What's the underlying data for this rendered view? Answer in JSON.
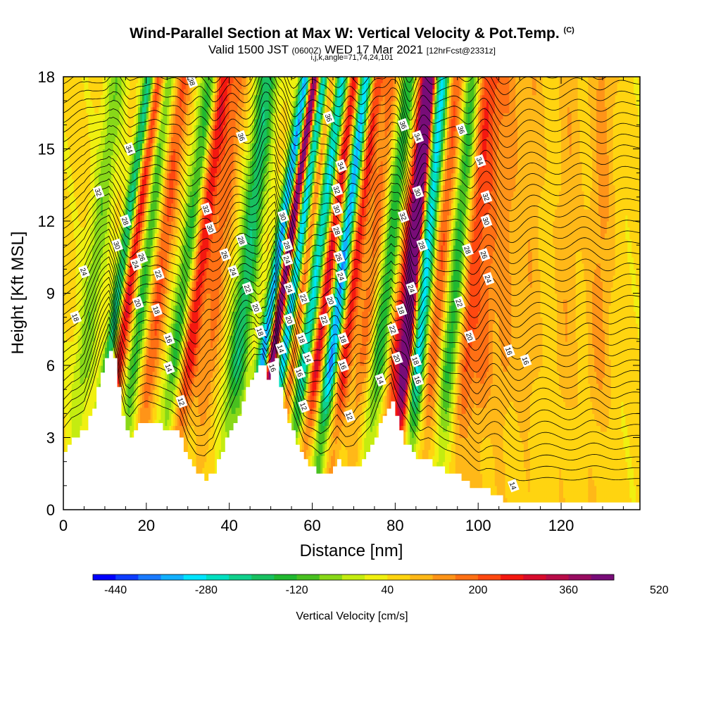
{
  "title": {
    "main": "Wind-Parallel Section at Max W: Vertical Velocity & Pot.Temp.",
    "copyright": "(C)",
    "valid_prefix": "Valid 1500 JST",
    "valid_utc": "(0600Z)",
    "valid_date": "WED 17 Mar 2021",
    "forecast": "[12hrFcst@2331z]",
    "indices": "i,j,k,angle=71,74,24,101"
  },
  "chart_data": {
    "type": "heatmap",
    "xlabel": "Distance [nm]",
    "ylabel": "Height [Kft MSL]",
    "xlim": [
      0,
      139
    ],
    "ylim": [
      0,
      18
    ],
    "x_ticks": [
      0,
      20,
      40,
      60,
      80,
      100,
      120
    ],
    "y_ticks": [
      0,
      3,
      6,
      9,
      12,
      15,
      18
    ],
    "colorbar": {
      "label": "Vertical Velocity [cm/s]",
      "tick_labels": [
        -440,
        -280,
        -120,
        40,
        200,
        360,
        520
      ],
      "min": -480,
      "step": 40,
      "colors": [
        "#0000ff",
        "#0d3cff",
        "#1a7aff",
        "#12b0ff",
        "#00e4ff",
        "#00e0c0",
        "#10d08c",
        "#18c060",
        "#20b830",
        "#48c020",
        "#88d818",
        "#c4ec10",
        "#f0f010",
        "#ffd410",
        "#ffb818",
        "#ff9418",
        "#ff7014",
        "#ff4810",
        "#f41810",
        "#d80c2c",
        "#b80c48",
        "#980c60",
        "#780c78"
      ]
    },
    "terrain_height_kft": [
      [
        0,
        2.5
      ],
      [
        2,
        3.0
      ],
      [
        5,
        3.3
      ],
      [
        7,
        4.3
      ],
      [
        9,
        5.6
      ],
      [
        11,
        6.7
      ],
      [
        12,
        6.3
      ],
      [
        13,
        5.2
      ],
      [
        14,
        4.0
      ],
      [
        15,
        3.2
      ],
      [
        16,
        3.0
      ],
      [
        18,
        3.5
      ],
      [
        20,
        3.7
      ],
      [
        22,
        3.6
      ],
      [
        24,
        3.4
      ],
      [
        26,
        3.3
      ],
      [
        28,
        3.0
      ],
      [
        30,
        2.0
      ],
      [
        32,
        1.5
      ],
      [
        34,
        1.3
      ],
      [
        36,
        1.5
      ],
      [
        38,
        2.5
      ],
      [
        40,
        3.3
      ],
      [
        42,
        4.0
      ],
      [
        44,
        5.0
      ],
      [
        46,
        5.8
      ],
      [
        48,
        6.0
      ],
      [
        49,
        5.5
      ],
      [
        50,
        5.6
      ],
      [
        51,
        6.2
      ],
      [
        52,
        5.0
      ],
      [
        54,
        3.6
      ],
      [
        56,
        2.8
      ],
      [
        58,
        2.0
      ],
      [
        60,
        1.8
      ],
      [
        62,
        1.4
      ],
      [
        64,
        1.5
      ],
      [
        66,
        2.0
      ],
      [
        68,
        1.7
      ],
      [
        70,
        1.7
      ],
      [
        72,
        2.1
      ],
      [
        74,
        2.6
      ],
      [
        76,
        3.6
      ],
      [
        78,
        4.3
      ],
      [
        79,
        4.5
      ],
      [
        80,
        3.8
      ],
      [
        82,
        2.8
      ],
      [
        84,
        2.3
      ],
      [
        86,
        2.0
      ],
      [
        88,
        2.0
      ],
      [
        90,
        1.8
      ],
      [
        92,
        1.6
      ],
      [
        94,
        1.5
      ],
      [
        96,
        1.3
      ],
      [
        98,
        1.0
      ],
      [
        100,
        0.8
      ],
      [
        102,
        0.8
      ],
      [
        104,
        0.6
      ],
      [
        106,
        0.4
      ],
      [
        110,
        0.3
      ],
      [
        120,
        0.3
      ],
      [
        130,
        0.3
      ],
      [
        139,
        0.3
      ]
    ],
    "vertical_velocity_bands": [
      {
        "x": 5,
        "w": 2.5,
        "v": -120,
        "tilt": 1.2
      },
      {
        "x": 11,
        "w": 1.5,
        "v": -360,
        "tilt": 1.5
      },
      {
        "x": 13,
        "w": 2.2,
        "v": 280,
        "tilt": 1.5
      },
      {
        "x": 17,
        "w": 2.0,
        "v": -200,
        "tilt": 1.2
      },
      {
        "x": 21,
        "w": 2.0,
        "v": 160,
        "tilt": 1.2
      },
      {
        "x": 27,
        "w": 2.2,
        "v": -200,
        "tilt": 1.3
      },
      {
        "x": 30,
        "w": 2.2,
        "v": 240,
        "tilt": 1.3
      },
      {
        "x": 35,
        "w": 2.2,
        "v": 120,
        "tilt": 1.1
      },
      {
        "x": 42,
        "w": 2.5,
        "v": -240,
        "tilt": 1.1
      },
      {
        "x": 48,
        "w": 1.5,
        "v": -440,
        "tilt": 1.6
      },
      {
        "x": 50,
        "w": 1.3,
        "v": 480,
        "tilt": 1.6
      },
      {
        "x": 53,
        "w": 1.4,
        "v": -440,
        "tilt": 1.5
      },
      {
        "x": 55,
        "w": 1.8,
        "v": 200,
        "tilt": 1.4
      },
      {
        "x": 58,
        "w": 1.8,
        "v": -360,
        "tilt": 1.4
      },
      {
        "x": 61,
        "w": 1.8,
        "v": 280,
        "tilt": 1.4
      },
      {
        "x": 64.5,
        "w": 1.8,
        "v": -440,
        "tilt": 1.3
      },
      {
        "x": 67.5,
        "w": 1.8,
        "v": 240,
        "tilt": 1.2
      },
      {
        "x": 72,
        "w": 2.0,
        "v": 120,
        "tilt": 1.1
      },
      {
        "x": 76,
        "w": 2.0,
        "v": -200,
        "tilt": 1.1
      },
      {
        "x": 80,
        "w": 1.8,
        "v": 200,
        "tilt": 1.1
      },
      {
        "x": 82.5,
        "w": 1.5,
        "v": 480,
        "tilt": 0.9
      },
      {
        "x": 85.5,
        "w": 1.8,
        "v": -360,
        "tilt": 0.9
      },
      {
        "x": 89,
        "w": 2.0,
        "v": 160,
        "tilt": 0.9
      },
      {
        "x": 93,
        "w": 2.2,
        "v": -200,
        "tilt": 0.9
      },
      {
        "x": 97,
        "w": 2.2,
        "v": 160,
        "tilt": 0.7
      },
      {
        "x": 101,
        "w": 2.5,
        "v": 120,
        "tilt": 0.5
      },
      {
        "x": 106,
        "w": 2.5,
        "v": 80,
        "tilt": 0.3
      },
      {
        "x": 112,
        "w": 3.0,
        "v": 60,
        "tilt": 0.2
      },
      {
        "x": 121,
        "w": 3.0,
        "v": 60,
        "tilt": 0.2
      },
      {
        "x": 129,
        "w": 3.0,
        "v": 80,
        "tilt": 0.2
      }
    ],
    "potential_temperature_labels": [
      {
        "x": 31,
        "y": 17.8,
        "t": "38"
      },
      {
        "x": 43,
        "y": 15.5,
        "t": "36"
      },
      {
        "x": 64,
        "y": 16.3,
        "t": "36"
      },
      {
        "x": 82,
        "y": 16.0,
        "t": "36"
      },
      {
        "x": 96,
        "y": 15.8,
        "t": "36"
      },
      {
        "x": 16,
        "y": 15.0,
        "t": "34"
      },
      {
        "x": 67,
        "y": 14.3,
        "t": "34"
      },
      {
        "x": 85.5,
        "y": 15.5,
        "t": "34"
      },
      {
        "x": 100.5,
        "y": 14.5,
        "t": "34"
      },
      {
        "x": 8.5,
        "y": 13.2,
        "t": "32"
      },
      {
        "x": 34.5,
        "y": 12.5,
        "t": "32"
      },
      {
        "x": 66,
        "y": 13.3,
        "t": "32"
      },
      {
        "x": 82,
        "y": 12.2,
        "t": "32"
      },
      {
        "x": 102,
        "y": 13.0,
        "t": "32"
      },
      {
        "x": 13,
        "y": 11.0,
        "t": "30"
      },
      {
        "x": 35.5,
        "y": 11.7,
        "t": "30"
      },
      {
        "x": 53,
        "y": 12.2,
        "t": "30"
      },
      {
        "x": 66,
        "y": 12.5,
        "t": "30"
      },
      {
        "x": 85.5,
        "y": 13.2,
        "t": "30"
      },
      {
        "x": 102,
        "y": 12.0,
        "t": "30"
      },
      {
        "x": 15,
        "y": 12.0,
        "t": "28"
      },
      {
        "x": 43,
        "y": 11.2,
        "t": "28"
      },
      {
        "x": 54,
        "y": 11.0,
        "t": "28"
      },
      {
        "x": 66,
        "y": 11.6,
        "t": "28"
      },
      {
        "x": 86.5,
        "y": 11.0,
        "t": "28"
      },
      {
        "x": 97.5,
        "y": 10.8,
        "t": "28"
      },
      {
        "x": 19,
        "y": 10.5,
        "t": "26"
      },
      {
        "x": 39,
        "y": 10.6,
        "t": "26"
      },
      {
        "x": 66.5,
        "y": 10.5,
        "t": "26"
      },
      {
        "x": 101.5,
        "y": 10.6,
        "t": "26"
      },
      {
        "x": 5,
        "y": 9.9,
        "t": "24"
      },
      {
        "x": 17.5,
        "y": 10.2,
        "t": "24"
      },
      {
        "x": 41,
        "y": 9.9,
        "t": "24"
      },
      {
        "x": 54,
        "y": 10.4,
        "t": "24"
      },
      {
        "x": 54.5,
        "y": 9.2,
        "t": "24"
      },
      {
        "x": 67,
        "y": 9.7,
        "t": "24"
      },
      {
        "x": 84,
        "y": 9.2,
        "t": "24"
      },
      {
        "x": 102.5,
        "y": 9.6,
        "t": "24"
      },
      {
        "x": 23,
        "y": 9.8,
        "t": "22"
      },
      {
        "x": 44.5,
        "y": 9.2,
        "t": "22"
      },
      {
        "x": 58,
        "y": 8.8,
        "t": "22"
      },
      {
        "x": 63,
        "y": 7.9,
        "t": "22"
      },
      {
        "x": 79.5,
        "y": 7.5,
        "t": "22"
      },
      {
        "x": 95.5,
        "y": 8.6,
        "t": "22"
      },
      {
        "x": 18,
        "y": 8.6,
        "t": "20"
      },
      {
        "x": 46.5,
        "y": 8.4,
        "t": "20"
      },
      {
        "x": 54.5,
        "y": 7.9,
        "t": "20"
      },
      {
        "x": 64.5,
        "y": 8.7,
        "t": "20"
      },
      {
        "x": 80.5,
        "y": 6.3,
        "t": "20"
      },
      {
        "x": 98,
        "y": 7.2,
        "t": "20"
      },
      {
        "x": 3,
        "y": 8.0,
        "t": "18"
      },
      {
        "x": 22.5,
        "y": 8.3,
        "t": "18"
      },
      {
        "x": 47.5,
        "y": 7.4,
        "t": "18"
      },
      {
        "x": 57.5,
        "y": 7.1,
        "t": "18"
      },
      {
        "x": 67.5,
        "y": 7.1,
        "t": "18"
      },
      {
        "x": 81.5,
        "y": 8.3,
        "t": "18"
      },
      {
        "x": 85,
        "y": 6.2,
        "t": "18"
      },
      {
        "x": 25.5,
        "y": 7.1,
        "t": "16"
      },
      {
        "x": 50.5,
        "y": 5.9,
        "t": "16"
      },
      {
        "x": 57,
        "y": 5.7,
        "t": "16"
      },
      {
        "x": 67.5,
        "y": 6.0,
        "t": "16"
      },
      {
        "x": 85.5,
        "y": 5.4,
        "t": "16"
      },
      {
        "x": 107.5,
        "y": 6.6,
        "t": "16"
      },
      {
        "x": 111.5,
        "y": 6.2,
        "t": "16"
      },
      {
        "x": 25.5,
        "y": 5.9,
        "t": "14"
      },
      {
        "x": 52.5,
        "y": 6.7,
        "t": "14"
      },
      {
        "x": 59,
        "y": 6.3,
        "t": "14"
      },
      {
        "x": 76.5,
        "y": 5.4,
        "t": "14"
      },
      {
        "x": 108.5,
        "y": 1.0,
        "t": "14"
      },
      {
        "x": 28.5,
        "y": 4.5,
        "t": "12"
      },
      {
        "x": 58,
        "y": 4.3,
        "t": "12"
      },
      {
        "x": 69,
        "y": 3.9,
        "t": "12"
      }
    ]
  }
}
